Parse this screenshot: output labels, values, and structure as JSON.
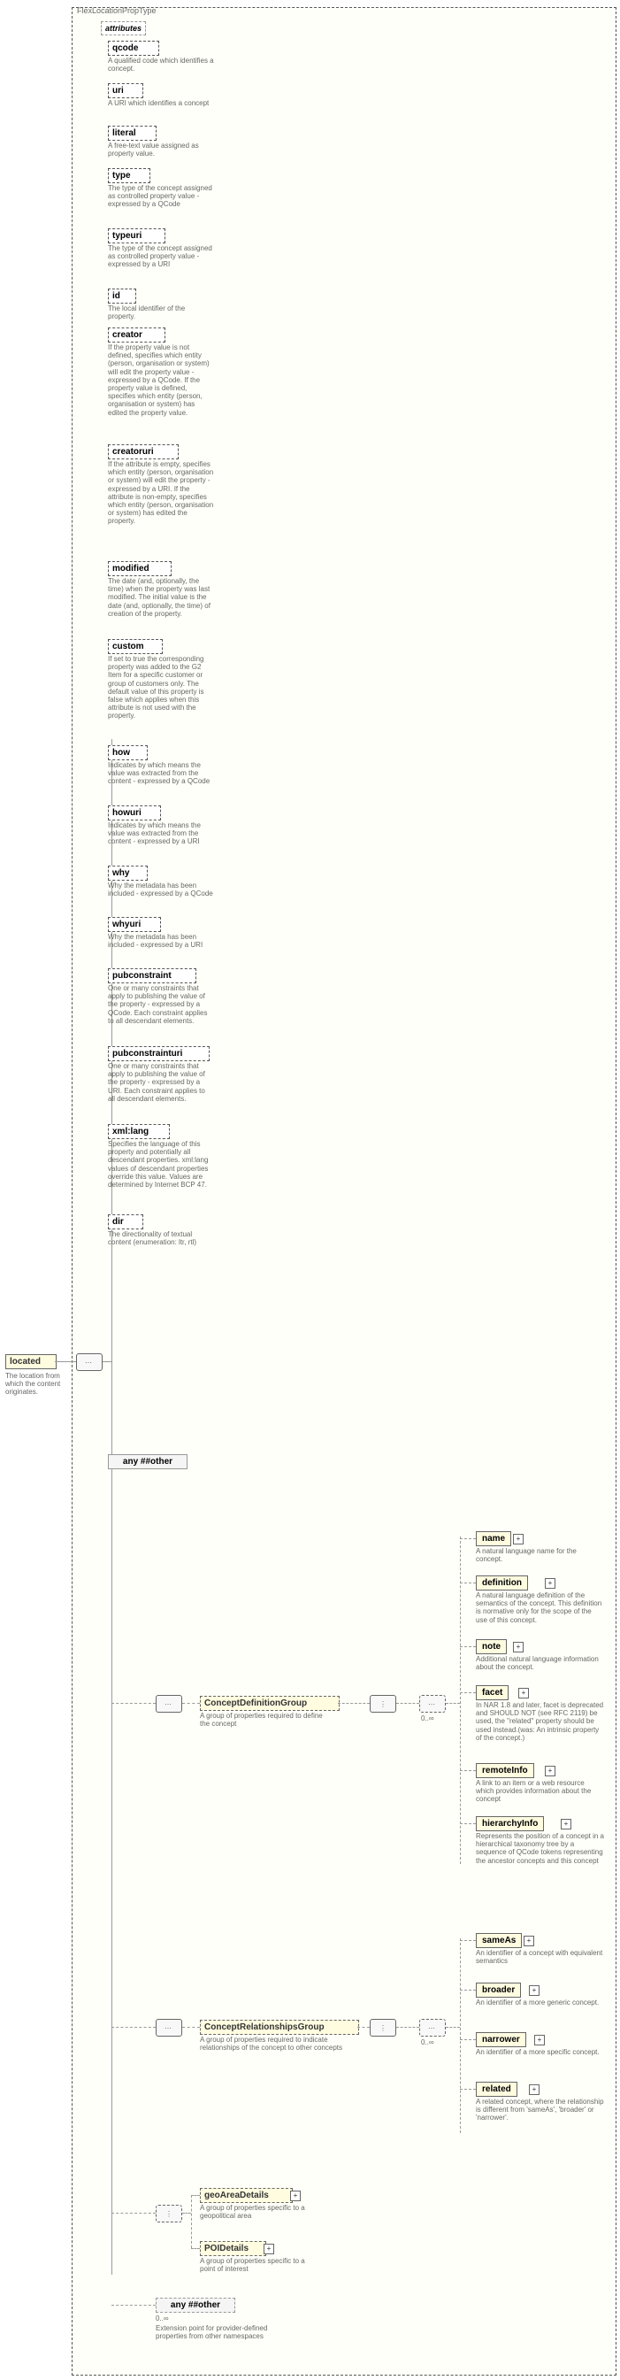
{
  "outer": {
    "label": "FlexLocationPropType",
    "border_color": "#777777",
    "bg_color": "#ffffe5"
  },
  "root": {
    "label": "located",
    "desc": "The location from which the content originates."
  },
  "attributes_header": "attributes",
  "attributes": [
    {
      "name": "qcode",
      "desc": "A qualified code which identifies a concept."
    },
    {
      "name": "uri",
      "desc": "A URI which identifies a concept"
    },
    {
      "name": "literal",
      "desc": "A free-text value assigned as property value."
    },
    {
      "name": "type",
      "desc": "The type of the concept assigned as controlled property value - expressed by a QCode"
    },
    {
      "name": "typeuri",
      "desc": "The type of the concept assigned as controlled property value - expressed by a URI"
    },
    {
      "name": "id",
      "desc": "The local identifier of the property."
    },
    {
      "name": "creator",
      "desc": "If the property value is not defined, specifies which entity (person, organisation or system) will edit the property value - expressed by a QCode. If the property value is defined, specifies which entity (person, organisation or system) has edited the property value."
    },
    {
      "name": "creatoruri",
      "desc": "If the attribute is empty, specifies which entity (person, organisation or system) will edit the property - expressed by a URI. If the attribute is non-empty, specifies which entity (person, organisation or system) has edited the property."
    },
    {
      "name": "modified",
      "desc": "The date (and, optionally, the time) when the property was last modified. The initial value is the date (and, optionally, the time) of creation of the property."
    },
    {
      "name": "custom",
      "desc": "If set to true the corresponding property was added to the G2 Item for a specific customer or group of customers only. The default value of this property is false which applies when this attribute is not used with the property."
    },
    {
      "name": "how",
      "desc": "Indicates by which means the value was extracted from the content - expressed by a QCode"
    },
    {
      "name": "howuri",
      "desc": "Indicates by which means the value was extracted from the content - expressed by a URI"
    },
    {
      "name": "why",
      "desc": "Why the metadata has been included - expressed by a QCode"
    },
    {
      "name": "whyuri",
      "desc": "Why the metadata has been included - expressed by a URI"
    },
    {
      "name": "pubconstraint",
      "desc": "One or many constraints that apply to publishing the value of the property - expressed by a QCode. Each constraint applies to all descendant elements."
    },
    {
      "name": "pubconstrainturi",
      "desc": "One or many constraints that apply to publishing the value of the property - expressed by a URI. Each constraint applies to all descendant elements."
    },
    {
      "name": "xml:lang",
      "desc": "Specifies the language of this property and potentially all descendant properties. xml:lang values of descendant properties override this value. Values are determined by Internet BCP 47."
    },
    {
      "name": "dir",
      "desc": "The directionality of textual content (enumeration: ltr, rtl)"
    }
  ],
  "any_other": "any ##other",
  "groups": {
    "definition": {
      "label": "ConceptDefinitionGroup",
      "desc": "A group of properties required to define the concept",
      "occurs": "0..∞",
      "children": [
        {
          "name": "name",
          "desc": "A natural language name for the concept."
        },
        {
          "name": "definition",
          "desc": "A natural language definition of the semantics of the concept. This definition is normative only for the scope of the use of this concept."
        },
        {
          "name": "note",
          "desc": "Additional natural language information about the concept."
        },
        {
          "name": "facet",
          "desc": "In NAR 1.8 and later, facet is deprecated and SHOULD NOT (see RFC 2119) be used, the \"related\" property should be used instead.(was: An intrinsic property of the concept.)"
        },
        {
          "name": "remoteInfo",
          "desc": "A link to an item or a web resource which provides information about the concept"
        },
        {
          "name": "hierarchyInfo",
          "desc": "Represents the position of a concept in a hierarchical taxonomy tree by a sequence of QCode tokens representing the ancestor concepts and this concept"
        }
      ]
    },
    "relationships": {
      "label": "ConceptRelationshipsGroup",
      "desc": "A group of properties required to indicate relationships of the concept to other concepts",
      "occurs": "0..∞",
      "children": [
        {
          "name": "sameAs",
          "desc": "An identifier of a concept with equivalent semantics"
        },
        {
          "name": "broader",
          "desc": "An identifier of a more generic concept."
        },
        {
          "name": "narrower",
          "desc": "An identifier of a more specific concept."
        },
        {
          "name": "related",
          "desc": "A related concept, where the relationship is different from 'sameAs', 'broader' or 'narrower'."
        }
      ]
    },
    "geo": {
      "label": "geoAreaDetails",
      "desc": "A group of properties specific to a geopolitical area"
    },
    "poi": {
      "label": "POIDetails",
      "desc": "A group of properties specific to a point of interest"
    }
  },
  "bottom_any": {
    "label": "any ##other",
    "occurs": "0..∞",
    "desc": "Extension point for provider-defined properties from other namespaces"
  },
  "colors": {
    "element_bg": "#fffce0",
    "desc_text": "#666666"
  }
}
